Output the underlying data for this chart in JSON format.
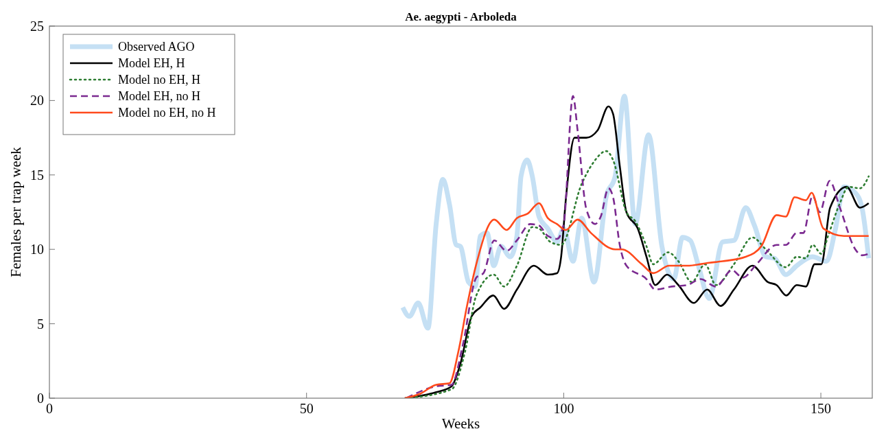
{
  "chart_data": {
    "type": "line",
    "title": "Ae. aegypti - Arboleda",
    "xlabel": "Weeks",
    "ylabel": "Females per trap week",
    "xlim": [
      0,
      160
    ],
    "xticks": [
      0,
      50,
      100,
      150
    ],
    "ylim": [
      0,
      25
    ],
    "yticks": [
      0,
      5,
      10,
      15,
      20,
      25
    ],
    "grid": false,
    "legend": "top left",
    "series": [
      {
        "name": "Observed AGO",
        "color": "#c5e0f4",
        "line_style": "solid",
        "x": [
          68.7,
          70.0,
          71.7,
          73.6,
          75.2,
          76.5,
          77.8,
          79.1,
          79.9,
          81.5,
          82.8,
          83.8,
          85.1,
          86.4,
          87.8,
          89.6,
          90.9,
          91.7,
          92.9,
          93.9,
          95.2,
          96.9,
          98.7,
          100.0,
          101.8,
          103.5,
          105.9,
          108.3,
          110.0,
          111.8,
          113.9,
          116.5,
          119.1,
          121.4,
          123.1,
          124.6,
          126.2,
          128.3,
          130.9,
          133.1,
          135.4,
          137.1,
          139.3,
          141.0,
          143.2,
          145.3,
          148.4,
          151.1,
          152.8,
          154.5,
          156.7,
          158.0,
          159.3
        ],
        "values": [
          6.1,
          5.5,
          6.4,
          4.7,
          11.7,
          14.7,
          13.0,
          10.3,
          10.2,
          7.8,
          7.5,
          10.9,
          11.1,
          8.9,
          10.2,
          9.5,
          10.9,
          14.9,
          16.0,
          14.9,
          12.2,
          11.4,
          10.5,
          11.4,
          9.2,
          12.1,
          7.8,
          13.6,
          14.9,
          20.3,
          11.7,
          17.7,
          10.2,
          8.0,
          10.8,
          10.6,
          8.9,
          6.7,
          10.5,
          10.6,
          12.8,
          11.6,
          9.5,
          9.4,
          8.3,
          8.9,
          9.5,
          9.2,
          11.3,
          14.2,
          13.8,
          12.8,
          9.4
        ]
      },
      {
        "name": "Model EH, H",
        "color": "#000000",
        "line_style": "solid",
        "x": [
          69.1,
          75.2,
          78.2,
          79.9,
          82.1,
          83.8,
          86.3,
          88.4,
          90.9,
          94.2,
          96.9,
          98.7,
          99.5,
          100.4,
          102.1,
          104.4,
          106.6,
          108.7,
          109.6,
          110.9,
          112.2,
          114.4,
          116.1,
          117.8,
          120.1,
          122.3,
          125.3,
          127.9,
          130.5,
          133.1,
          136.7,
          139.7,
          141.4,
          143.3,
          145.3,
          147.1,
          148.8,
          150.1,
          151.8,
          155.0,
          157.6,
          159.3
        ],
        "values": [
          0,
          0.4,
          0.8,
          2.3,
          5.5,
          6.1,
          6.9,
          6.0,
          7.3,
          8.9,
          8.3,
          8.4,
          9.5,
          13.3,
          17.5,
          17.5,
          18.0,
          19.6,
          19.1,
          15.6,
          12.5,
          11.4,
          9.5,
          7.6,
          8.3,
          7.6,
          6.4,
          7.3,
          6.2,
          7.3,
          8.9,
          7.8,
          7.6,
          6.9,
          7.6,
          7.5,
          9.0,
          9.0,
          12.8,
          14.2,
          12.8,
          13.1
        ]
      },
      {
        "name": "Model no EH, H",
        "color": "#2e7d32",
        "line_style": "dotted",
        "x": [
          69.4,
          78.2,
          80.8,
          83.0,
          86.4,
          88.4,
          90.9,
          93.9,
          95.2,
          97.4,
          99.5,
          103.5,
          105.7,
          108.3,
          109.6,
          112.2,
          113.9,
          116.1,
          117.4,
          120.3,
          122.3,
          124.9,
          127.5,
          129.6,
          133.1,
          136.7,
          139.3,
          143.2,
          145.3,
          147.1,
          148.4,
          150.1,
          151.4,
          153.7,
          155.4,
          157.6,
          159.3
        ],
        "values": [
          0,
          0.6,
          3.1,
          6.9,
          8.3,
          7.5,
          8.9,
          11.5,
          11.4,
          10.5,
          10.3,
          14.4,
          15.8,
          16.6,
          16.0,
          12.5,
          11.9,
          10.2,
          9.0,
          9.8,
          9.2,
          7.8,
          9.0,
          7.6,
          9.0,
          10.8,
          10.0,
          8.8,
          9.5,
          9.4,
          10.3,
          9.7,
          10.9,
          13.1,
          14.2,
          14.1,
          14.9
        ]
      },
      {
        "name": "Model EH, no H",
        "color": "#7b2a90",
        "line_style": "dashed",
        "x": [
          69.4,
          75.2,
          78.2,
          80.4,
          83.0,
          84.4,
          86.5,
          88.9,
          90.9,
          93.5,
          95.2,
          96.9,
          98.7,
          100.0,
          101.8,
          102.7,
          104.4,
          106.1,
          107.2,
          108.7,
          109.6,
          110.9,
          112.2,
          116.1,
          117.8,
          121.0,
          124.0,
          126.6,
          129.6,
          132.7,
          134.8,
          137.5,
          141.4,
          143.2,
          145.3,
          146.6,
          148.4,
          149.8,
          151.7,
          153.7,
          156.7,
          158.0,
          159.3
        ],
        "values": [
          0,
          0.8,
          0.9,
          3.6,
          8.1,
          8.4,
          10.6,
          9.9,
          10.6,
          11.7,
          11.6,
          10.9,
          10.7,
          11.7,
          20.3,
          18.0,
          12.7,
          11.7,
          12.2,
          14.1,
          13.5,
          10.3,
          8.9,
          8.0,
          7.3,
          7.5,
          7.6,
          8.0,
          7.5,
          8.6,
          8.1,
          9.0,
          10.3,
          10.3,
          11.1,
          11.1,
          13.6,
          12.5,
          14.6,
          12.8,
          10.0,
          9.6,
          9.7
        ]
      },
      {
        "name": "Model no EH, no H",
        "color": "#ff4a1c",
        "line_style": "solid",
        "x": [
          69.1,
          72.1,
          75.2,
          77.8,
          79.5,
          81.2,
          83.0,
          86.5,
          88.9,
          90.9,
          93.0,
          95.2,
          96.9,
          98.7,
          100.4,
          102.7,
          105.3,
          110.0,
          111.3,
          115.2,
          117.4,
          120.5,
          124.0,
          128.3,
          130.9,
          135.4,
          138.4,
          141.4,
          143.2,
          144.9,
          147.1,
          148.2,
          150.5,
          154.5,
          159.3
        ],
        "values": [
          0,
          0.3,
          0.9,
          1.0,
          3.1,
          6.2,
          9.0,
          12.0,
          11.3,
          12.1,
          12.4,
          13.1,
          12.1,
          11.7,
          11.3,
          12.0,
          11.1,
          10.0,
          10.0,
          9.0,
          8.4,
          8.9,
          8.9,
          9.1,
          9.2,
          9.5,
          10.2,
          12.3,
          12.2,
          13.5,
          13.3,
          13.8,
          11.4,
          10.9,
          10.9
        ]
      }
    ]
  }
}
